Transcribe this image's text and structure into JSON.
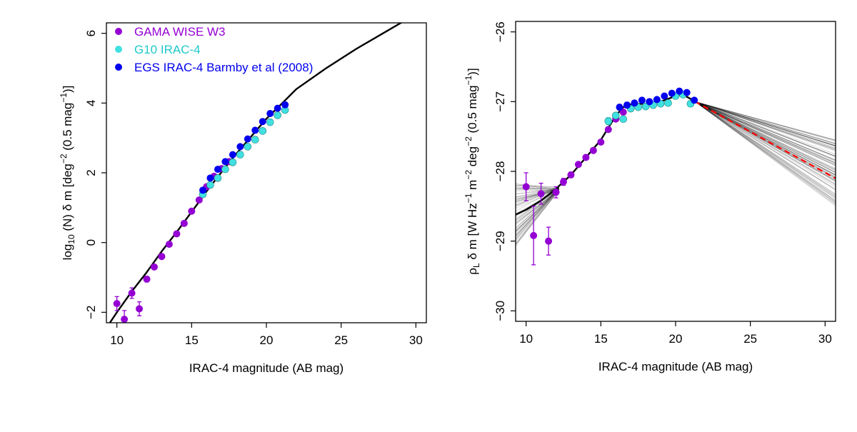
{
  "chart_data": [
    {
      "type": "scatter",
      "xlabel": "IRAC-4 magnitude (AB mag)",
      "ylabel_parts": [
        "log",
        "10",
        " (N) δ m [deg",
        "−2",
        " (0.5 mag",
        "−1",
        ")]"
      ],
      "xlim": [
        9.3,
        30.7
      ],
      "ylim": [
        -2.3,
        6.3
      ],
      "xticks": [
        10,
        15,
        20,
        25,
        30
      ],
      "xtick_labels": [
        "10",
        "15",
        "20",
        "25",
        "30"
      ],
      "yticks": [
        -2,
        0,
        2,
        4,
        6
      ],
      "ytick_labels": [
        "−2",
        "0",
        "2",
        "4",
        "6"
      ],
      "legend": {
        "position": "top-left",
        "entries": [
          {
            "label": "GAMA WISE W3",
            "color": "#9400D3"
          },
          {
            "label": "G10 IRAC-4",
            "color": "#40E0E0"
          },
          {
            "label": "EGS IRAC-4 Barmby et al (2008)",
            "color": "#0000EE"
          }
        ]
      },
      "series": [
        {
          "name": "GAMA WISE W3",
          "color": "#9400D3",
          "x": [
            10.0,
            10.5,
            11.0,
            11.5,
            12.0,
            12.5,
            13.0,
            13.5,
            14.0,
            14.5,
            15.0,
            15.5,
            16.0,
            16.5,
            17.0,
            17.5
          ],
          "y": [
            -1.75,
            -2.2,
            -1.45,
            -1.9,
            -1.05,
            -0.7,
            -0.4,
            -0.05,
            0.25,
            0.55,
            0.9,
            1.22,
            1.6,
            1.9,
            2.12,
            2.32
          ],
          "err": [
            0.2,
            0.25,
            0.15,
            0.2,
            0.08,
            0.05,
            0.04,
            0.03,
            0.02,
            0.02,
            0.02,
            0.02,
            0.02,
            0.02,
            0.02,
            0.02
          ]
        },
        {
          "name": "G10 IRAC-4",
          "color": "#40E0E0",
          "x": [
            15.75,
            16.25,
            16.75,
            17.25,
            17.75,
            18.25,
            18.75,
            19.25,
            19.75,
            20.25,
            20.75,
            21.25
          ],
          "y": [
            1.38,
            1.65,
            1.85,
            2.1,
            2.3,
            2.52,
            2.75,
            2.95,
            3.2,
            3.45,
            3.65,
            3.8
          ],
          "err": [
            0.05,
            0.04,
            0.03,
            0.03,
            0.03,
            0.03,
            0.03,
            0.03,
            0.03,
            0.03,
            0.03,
            0.04
          ]
        },
        {
          "name": "EGS IRAC-4 Barmby et al (2008)",
          "color": "#0000EE",
          "x": [
            15.75,
            16.25,
            16.75,
            17.25,
            17.75,
            18.25,
            18.75,
            19.25,
            19.75,
            20.25,
            20.75,
            21.25
          ],
          "y": [
            1.5,
            1.85,
            2.1,
            2.32,
            2.52,
            2.75,
            2.97,
            3.22,
            3.47,
            3.7,
            3.85,
            3.95
          ],
          "err": [
            0.04,
            0.04,
            0.03,
            0.03,
            0.03,
            0.03,
            0.03,
            0.03,
            0.03,
            0.03,
            0.03,
            0.03
          ]
        }
      ],
      "model_curve": {
        "color": "#000000",
        "x": [
          9.3,
          10,
          11,
          12,
          13,
          14,
          15,
          15.5,
          16,
          17,
          18,
          19,
          20,
          21,
          22,
          24,
          26,
          28,
          30,
          30.7
        ],
        "y": [
          -2.45,
          -2.0,
          -1.4,
          -0.85,
          -0.25,
          0.3,
          0.88,
          1.17,
          1.47,
          2.02,
          2.55,
          3.05,
          3.55,
          3.97,
          4.4,
          5.0,
          5.55,
          6.05,
          6.55,
          6.7
        ]
      }
    },
    {
      "type": "scatter",
      "xlabel": "IRAC-4 magnitude (AB mag)",
      "ylabel_parts": [
        "ρ",
        "L",
        " δ m [W Hz",
        "−1",
        " m",
        "−2",
        " deg",
        "−2",
        " (0.5 mag",
        "−1",
        ")]"
      ],
      "xlim": [
        9.3,
        30.7
      ],
      "ylim": [
        -30.15,
        -25.85
      ],
      "xticks": [
        10,
        15,
        20,
        25,
        30
      ],
      "xtick_labels": [
        "10",
        "15",
        "20",
        "25",
        "30"
      ],
      "yticks": [
        -30,
        -29,
        -28,
        -27,
        -26
      ],
      "ytick_labels": [
        "−30",
        "−29",
        "−28",
        "−27",
        "−26"
      ],
      "series": [
        {
          "name": "GAMA WISE W3",
          "color": "#9400D3",
          "x": [
            10.0,
            10.5,
            11.0,
            11.5,
            12.0,
            12.5,
            13.0,
            13.5,
            14.0,
            14.5,
            15.0,
            15.5,
            16.0,
            16.5,
            17.0
          ],
          "y": [
            -28.22,
            -28.92,
            -28.32,
            -29.0,
            -28.3,
            -28.15,
            -28.05,
            -27.9,
            -27.8,
            -27.7,
            -27.58,
            -27.4,
            -27.25,
            -27.15,
            -27.1
          ],
          "err": [
            0.2,
            0.42,
            0.15,
            0.2,
            0.08,
            0.05,
            0.04,
            0.03,
            0.02,
            0.02,
            0.02,
            0.02,
            0.02,
            0.02,
            0.02
          ]
        },
        {
          "name": "G10 IRAC-4",
          "color": "#40E0E0",
          "x": [
            15.5,
            16.0,
            16.5,
            17.0,
            17.5,
            18.0,
            18.5,
            19.0,
            19.5,
            20.0,
            20.5,
            21.0
          ],
          "y": [
            -27.28,
            -27.2,
            -27.25,
            -27.1,
            -27.08,
            -27.07,
            -27.05,
            -27.03,
            -27.02,
            -26.92,
            -26.9,
            -27.03
          ],
          "err": [
            0.05,
            0.04,
            0.03,
            0.03,
            0.03,
            0.03,
            0.03,
            0.03,
            0.03,
            0.03,
            0.03,
            0.04
          ]
        },
        {
          "name": "EGS IRAC-4 Barmby et al (2008)",
          "color": "#0000EE",
          "x": [
            16.25,
            16.75,
            17.25,
            17.75,
            18.25,
            18.75,
            19.25,
            19.75,
            20.25,
            20.75,
            21.25
          ],
          "y": [
            -27.08,
            -27.05,
            -27.02,
            -26.98,
            -27.0,
            -26.97,
            -26.92,
            -26.88,
            -26.85,
            -26.87,
            -26.98
          ],
          "err": [
            0.04,
            0.04,
            0.03,
            0.03,
            0.03,
            0.03,
            0.03,
            0.03,
            0.03,
            0.03,
            0.03
          ]
        }
      ],
      "model_curve": {
        "color": "#000000",
        "x": [
          9.3,
          10,
          11,
          12,
          13,
          14,
          15,
          16,
          16.5,
          17,
          18,
          19,
          20,
          20.5,
          21,
          21.3
        ],
        "y": [
          -28.62,
          -28.55,
          -28.42,
          -28.25,
          -28.05,
          -27.8,
          -27.55,
          -27.2,
          -27.08,
          -27.04,
          -27.03,
          -27.0,
          -26.92,
          -26.9,
          -26.96,
          -27.0
        ]
      },
      "extrapolation": {
        "color": "#FF0000",
        "x": [
          21.3,
          30.7
        ],
        "y": [
          -27.0,
          -28.1
        ]
      }
    }
  ]
}
